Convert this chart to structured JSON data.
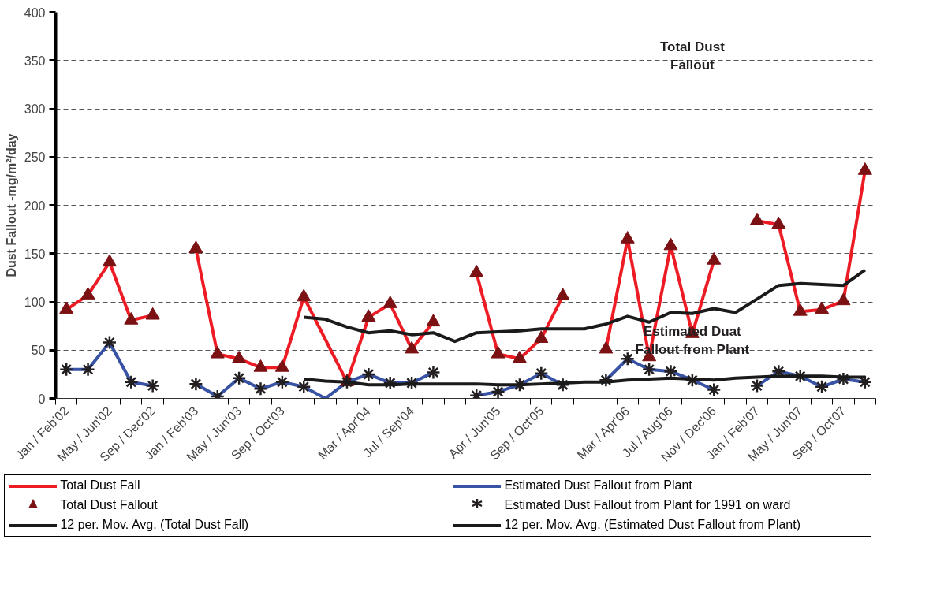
{
  "chart_data": {
    "type": "line",
    "categories": [
      "Jan / Feb'02",
      null,
      "May / Jun'02",
      null,
      "Sep / Dec'02",
      null,
      "Jan / Feb'03",
      null,
      "May / Jun'03",
      null,
      "Sep / Oct'03",
      null,
      null,
      null,
      "Mar / Apr'04",
      null,
      "Jul / Sep'04",
      null,
      null,
      null,
      "Apr / Jun'05",
      null,
      "Sep / Oct'05",
      null,
      null,
      null,
      "Mar / Apr'06",
      null,
      "Jul / Aug'06",
      null,
      "Nov / Dec'06",
      null,
      "Jan / Feb'07",
      null,
      "May / Jun'07",
      null,
      "Sep / Oct'07",
      null
    ],
    "ylabel": "Dust Fallout -mg/m²/day",
    "ylim": [
      0,
      400
    ],
    "yticks": [
      0,
      50,
      100,
      150,
      200,
      250,
      300,
      350,
      400
    ],
    "grid": "y",
    "legend": "bottom",
    "annotations": [
      "Total Dust\nFallout",
      "Estimated Duat\nFallout from Plant"
    ],
    "series": [
      {
        "name": "Total Dust Fall",
        "marker": "none",
        "color": "#ed1c24",
        "values": [
          92,
          107,
          141,
          81,
          86,
          null,
          155,
          46,
          41,
          32,
          32,
          105,
          61,
          17,
          84,
          98,
          51,
          79,
          null,
          130,
          46,
          41,
          62,
          106,
          null,
          51,
          165,
          43,
          158,
          67,
          143,
          null,
          184,
          180,
          90,
          92,
          101,
          236
        ]
      },
      {
        "name": "Estimated Dust Fallout from Plant",
        "marker": "none",
        "color": "#3953a4",
        "values": [
          30,
          30,
          58,
          17,
          13,
          null,
          15,
          2,
          21,
          10,
          17,
          12,
          0,
          17,
          25,
          16,
          16,
          27,
          null,
          3,
          7,
          14,
          26,
          14,
          null,
          19,
          41,
          30,
          28,
          19,
          9,
          null,
          13,
          28,
          23,
          12,
          20,
          17
        ]
      },
      {
        "name": "Total Dust Fallout",
        "type": "scatter",
        "marker": "triangle",
        "color": "#7b1113",
        "values": [
          92,
          107,
          141,
          81,
          86,
          null,
          155,
          46,
          41,
          32,
          32,
          105,
          null,
          17,
          84,
          98,
          51,
          79,
          null,
          130,
          46,
          41,
          62,
          106,
          null,
          51,
          165,
          43,
          158,
          67,
          143,
          null,
          184,
          180,
          90,
          92,
          101,
          236
        ]
      },
      {
        "name": "Estimated Dust Fallout from Plant for 1991 on ward",
        "type": "scatter",
        "marker": "cross",
        "color": "#231f20",
        "values": [
          30,
          30,
          58,
          17,
          13,
          null,
          15,
          2,
          21,
          10,
          17,
          12,
          null,
          17,
          25,
          16,
          16,
          27,
          null,
          3,
          7,
          14,
          26,
          14,
          null,
          19,
          41,
          30,
          28,
          19,
          9,
          null,
          13,
          28,
          23,
          12,
          20,
          17
        ]
      },
      {
        "name": "12 per. Mov. Avg. (Total Dust Fall)",
        "marker": "none",
        "color": "#1a1a1a",
        "values": [
          null,
          null,
          null,
          null,
          null,
          null,
          null,
          null,
          null,
          null,
          null,
          84,
          82,
          74,
          68,
          70,
          66,
          68,
          59,
          68,
          69,
          70,
          72,
          72,
          72,
          77,
          85,
          79,
          89,
          88,
          93,
          89,
          103,
          117,
          119,
          118,
          117,
          133
        ]
      },
      {
        "name": "12 per. Mov. Avg. (Estimated Dust Fallout from Plant)",
        "marker": "none",
        "color": "#1a1a1a",
        "values": [
          null,
          null,
          null,
          null,
          null,
          null,
          null,
          null,
          null,
          null,
          null,
          20,
          18,
          17,
          14,
          14,
          15,
          15,
          15,
          15,
          14,
          14,
          15,
          16,
          17,
          17,
          19,
          20,
          21,
          20,
          19,
          21,
          22,
          23,
          23,
          23,
          22,
          22
        ]
      }
    ]
  }
}
